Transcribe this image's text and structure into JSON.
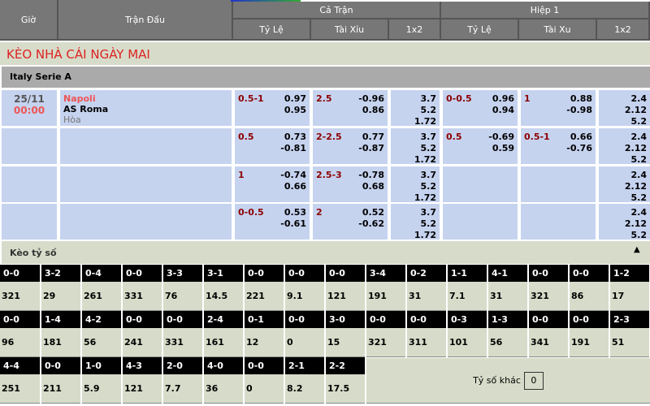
{
  "header": {
    "time": "Giờ",
    "match": "Trận Đấu",
    "full": "Cả Trận",
    "half": "Hiệp 1",
    "cols": [
      "Tỷ Lệ",
      "Tài Xỉu",
      "1x2",
      "Tỷ Lệ",
      "Tài Xu",
      "1x2"
    ]
  },
  "title": "KÈO NHÀ CÁI NGÀY MAI",
  "league": "Italy Serie A",
  "match": {
    "date": "25/11",
    "time": "00:00",
    "home": "Napoli",
    "away": "AS Roma",
    "draw": "Hòa"
  },
  "rows": [
    {
      "hdp": "0.5-1",
      "hdp_v": [
        "0.97",
        "0.95"
      ],
      "ou": "2.5",
      "ou_v": [
        "-0.96",
        "0.86"
      ],
      "x12": [
        "3.7",
        "5.2",
        "1.72"
      ],
      "h_hdp": "0-0.5",
      "h_hdp_v": [
        "0.96",
        "0.94"
      ],
      "h_ou": "1",
      "h_ou_v": [
        "0.88",
        "-0.98"
      ],
      "h_x12": [
        "2.4",
        "2.12",
        "5.2"
      ]
    },
    {
      "hdp": "0.5",
      "hdp_v": [
        "0.73",
        "-0.81"
      ],
      "ou": "2-2.5",
      "ou_v": [
        "0.77",
        "-0.87"
      ],
      "x12": [
        "3.7",
        "5.2",
        "1.72"
      ],
      "h_hdp": "0.5",
      "h_hdp_v": [
        "-0.69",
        "0.59"
      ],
      "h_ou": "0.5-1",
      "h_ou_v": [
        "0.66",
        "-0.76"
      ],
      "h_x12": [
        "2.4",
        "2.12",
        "5.2"
      ]
    },
    {
      "hdp": "1",
      "hdp_v": [
        "-0.74",
        "0.66"
      ],
      "ou": "2.5-3",
      "ou_v": [
        "-0.78",
        "0.68"
      ],
      "x12": [
        "3.7",
        "5.2",
        "1.72"
      ],
      "h_hdp": "",
      "h_hdp_v": [
        "",
        ""
      ],
      "h_ou": "",
      "h_ou_v": [
        "",
        ""
      ],
      "h_x12": [
        "2.4",
        "2.12",
        "5.2"
      ]
    },
    {
      "hdp": "0-0.5",
      "hdp_v": [
        "0.53",
        "-0.61"
      ],
      "ou": "2",
      "ou_v": [
        "0.52",
        "-0.62"
      ],
      "x12": [
        "3.7",
        "5.2",
        "1.72"
      ],
      "h_hdp": "",
      "h_hdp_v": [
        "",
        ""
      ],
      "h_ou": "",
      "h_ou_v": [
        "",
        ""
      ],
      "h_x12": [
        "2.4",
        "2.12",
        "5.2"
      ]
    }
  ],
  "score_title": "Kèo tỷ số",
  "scores": [
    [
      [
        "0-0",
        "321"
      ],
      [
        "3-2",
        "29"
      ],
      [
        "0-4",
        "261"
      ],
      [
        "0-0",
        "331"
      ],
      [
        "3-3",
        "76"
      ],
      [
        "3-1",
        "14.5"
      ],
      [
        "0-0",
        "221"
      ],
      [
        "0-0",
        "9.1"
      ],
      [
        "0-0",
        "121"
      ],
      [
        "3-4",
        "191"
      ],
      [
        "0-2",
        "31"
      ],
      [
        "1-1",
        "7.1"
      ],
      [
        "4-1",
        "31"
      ],
      [
        "0-0",
        "321"
      ],
      [
        "0-0",
        "86"
      ],
      [
        "1-2",
        "17"
      ]
    ],
    [
      [
        "0-0",
        "96"
      ],
      [
        "1-4",
        "181"
      ],
      [
        "4-2",
        "56"
      ],
      [
        "0-0",
        "241"
      ],
      [
        "0-0",
        "331"
      ],
      [
        "2-4",
        "161"
      ],
      [
        "0-1",
        "12"
      ],
      [
        "0-0",
        "0"
      ],
      [
        "3-0",
        "15"
      ],
      [
        "0-0",
        "321"
      ],
      [
        "0-0",
        "311"
      ],
      [
        "0-3",
        "101"
      ],
      [
        "1-3",
        "56"
      ],
      [
        "0-0",
        "341"
      ],
      [
        "0-0",
        "191"
      ],
      [
        "2-3",
        "51"
      ]
    ],
    [
      [
        "4-4",
        "251"
      ],
      [
        "0-0",
        "211"
      ],
      [
        "1-0",
        "5.9"
      ],
      [
        "4-3",
        "121"
      ],
      [
        "2-0",
        "7.7"
      ],
      [
        "4-0",
        "36"
      ],
      [
        "0-0",
        "0"
      ],
      [
        "2-1",
        "8.2"
      ],
      [
        "2-2",
        "17.5"
      ]
    ]
  ],
  "other": {
    "label": "Tỷ số khác",
    "value": "0"
  }
}
